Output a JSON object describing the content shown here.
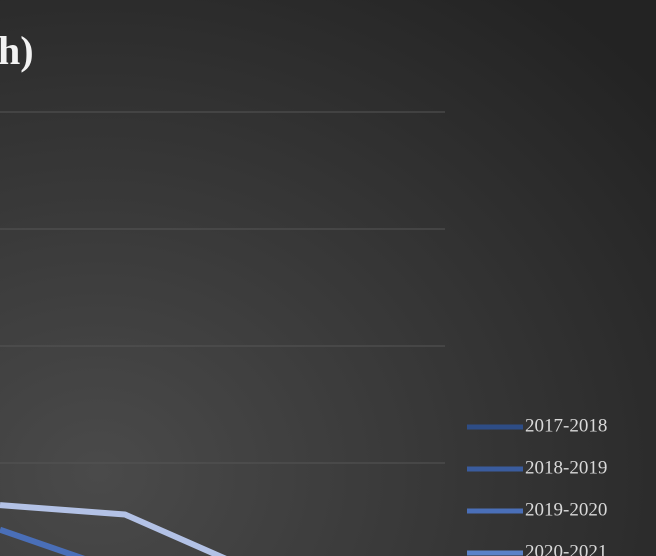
{
  "chart_data": {
    "type": "line",
    "title": "h)",
    "categories": [
      null,
      null,
      null,
      null
    ],
    "series": [
      {
        "name": "2017-2018",
        "color": "#2e4d86",
        "values": [
          null,
          null,
          null,
          null
        ]
      },
      {
        "name": "2018-2019",
        "color": "#3a5c9e",
        "values": [
          null,
          null,
          null,
          null
        ]
      },
      {
        "name": "2019-2020",
        "color": "#4a6fb8",
        "values": [
          0.43,
          0.06,
          null,
          null
        ]
      },
      {
        "name": "2020-2021",
        "color": "#5b82c8",
        "values": [
          null,
          null,
          null,
          null
        ]
      },
      {
        "color": "#b3c2e6",
        "values": [
          0.64,
          0.56,
          0.09,
          null
        ]
      }
    ],
    "ylim": [
      0,
      4
    ],
    "yticks": [
      1,
      2,
      3,
      4
    ],
    "grid": true,
    "legend": "right"
  }
}
